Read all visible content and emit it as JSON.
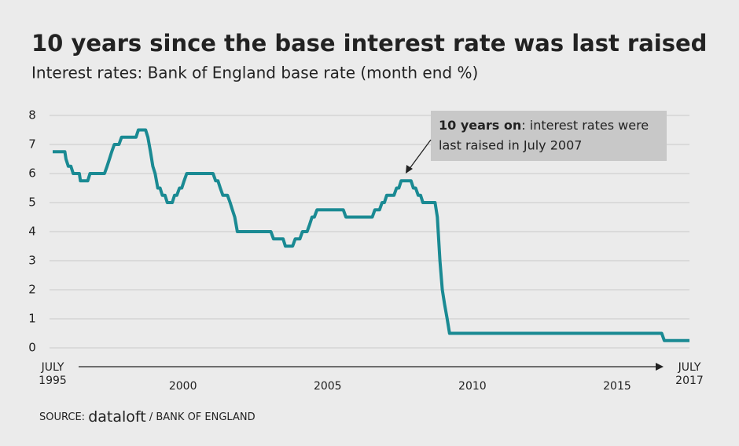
{
  "chart_data": {
    "type": "line",
    "title": "10 years since the base interest rate was last raised",
    "subtitle": "Interest rates: Bank of England base rate (month end %)",
    "annotation": {
      "bold": "10 years on",
      "lines": [
        ": interest rates were",
        "last raised in July 2007"
      ]
    },
    "source": {
      "prefix": "SOURCE:",
      "brand": "dataloft",
      "suffix": "/ BANK OF ENGLAND"
    },
    "xlim": [
      1995.5,
      2017.5
    ],
    "xticks": [
      {
        "value": 1995.5,
        "label": "JULY 1995"
      },
      2000,
      2005,
      2010,
      2015,
      {
        "value": 2017.5,
        "label": "JULY 2017"
      }
    ],
    "ylim": [
      0,
      8
    ],
    "yticks": [
      0,
      1,
      2,
      3,
      4,
      5,
      6,
      7,
      8
    ],
    "grid": true,
    "series": [
      {
        "name": "Bank of England base rate",
        "color": "#1a8a93",
        "x": [
          1995.5,
          1995.92,
          1995.96,
          1996.04,
          1996.13,
          1996.21,
          1996.42,
          1996.46,
          1996.71,
          1996.79,
          1997.29,
          1997.38,
          1997.46,
          1997.54,
          1997.63,
          1997.79,
          1997.88,
          1998.38,
          1998.46,
          1998.71,
          1998.79,
          1998.88,
          1998.96,
          1999.04,
          1999.13,
          1999.21,
          1999.29,
          1999.38,
          1999.46,
          1999.63,
          1999.71,
          1999.79,
          1999.88,
          1999.96,
          2000.04,
          2000.13,
          2001.04,
          2001.13,
          2001.21,
          2001.29,
          2001.38,
          2001.54,
          2001.63,
          2001.71,
          2001.79,
          2001.88,
          2003.04,
          2003.13,
          2003.46,
          2003.54,
          2003.79,
          2003.88,
          2004.04,
          2004.13,
          2004.29,
          2004.38,
          2004.46,
          2004.54,
          2004.63,
          2005.54,
          2005.63,
          2006.54,
          2006.63,
          2006.79,
          2006.88,
          2006.96,
          2007.04,
          2007.29,
          2007.38,
          2007.46,
          2007.54,
          2007.88,
          2007.96,
          2008.04,
          2008.13,
          2008.21,
          2008.29,
          2008.71,
          2008.79,
          2008.88,
          2008.96,
          2009.04,
          2009.13,
          2009.21,
          2016.54,
          2016.63,
          2017.5
        ],
        "values": [
          6.75,
          6.75,
          6.5,
          6.25,
          6.25,
          6.0,
          6.0,
          5.75,
          5.75,
          6.0,
          6.0,
          6.25,
          6.5,
          6.75,
          7.0,
          7.0,
          7.25,
          7.25,
          7.5,
          7.5,
          7.25,
          6.75,
          6.25,
          6.0,
          5.5,
          5.5,
          5.25,
          5.25,
          5.0,
          5.0,
          5.25,
          5.25,
          5.5,
          5.5,
          5.75,
          6.0,
          6.0,
          5.75,
          5.75,
          5.5,
          5.25,
          5.25,
          5.0,
          4.75,
          4.5,
          4.0,
          4.0,
          3.75,
          3.75,
          3.5,
          3.5,
          3.75,
          3.75,
          4.0,
          4.0,
          4.25,
          4.5,
          4.5,
          4.75,
          4.75,
          4.5,
          4.5,
          4.75,
          4.75,
          5.0,
          5.0,
          5.25,
          5.25,
          5.5,
          5.5,
          5.75,
          5.75,
          5.5,
          5.5,
          5.25,
          5.25,
          5.0,
          5.0,
          4.5,
          3.0,
          2.0,
          1.5,
          1.0,
          0.5,
          0.5,
          0.25,
          0.25
        ]
      }
    ]
  }
}
